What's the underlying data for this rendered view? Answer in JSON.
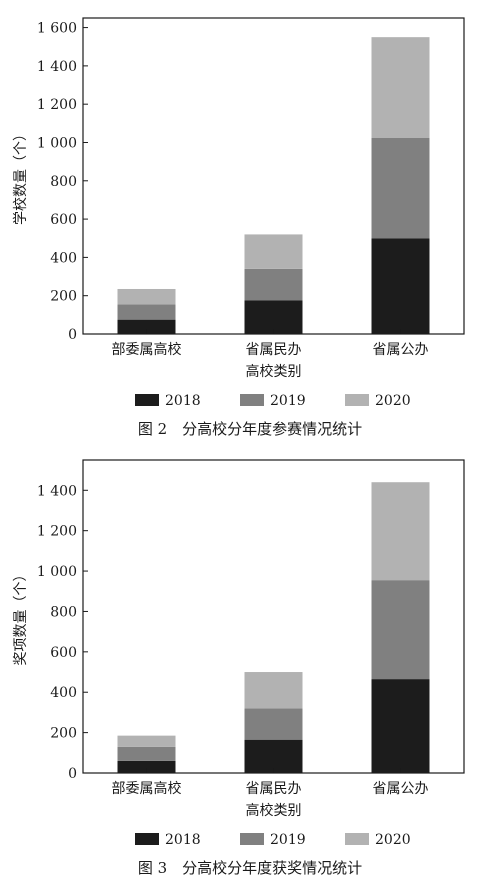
{
  "chart_data": [
    {
      "type": "bar",
      "stacked": true,
      "categories": [
        "部委属高校",
        "省属民办",
        "省属公办"
      ],
      "series": [
        {
          "name": "2018",
          "color": "#1c1c1c",
          "values": [
            75,
            175,
            500
          ]
        },
        {
          "name": "2019",
          "color": "#808080",
          "values": [
            80,
            165,
            525
          ]
        },
        {
          "name": "2020",
          "color": "#b2b2b2",
          "values": [
            80,
            180,
            525
          ]
        }
      ],
      "xlabel": "高校类别",
      "ylabel": "学校数量（个）",
      "ylim": [
        0,
        1650
      ],
      "yticks": [
        0,
        200,
        400,
        600,
        800,
        1000,
        1200,
        1400,
        1600
      ],
      "ytick_labels": [
        "0",
        "200",
        "400",
        "600",
        "800",
        "1 000",
        "1 200",
        "1 400",
        "1 600"
      ],
      "grid": false,
      "legend": "bottom",
      "caption": "图 2　分高校分年度参赛情况统计"
    },
    {
      "type": "bar",
      "stacked": true,
      "categories": [
        "部委属高校",
        "省属民办",
        "省属公办"
      ],
      "series": [
        {
          "name": "2018",
          "color": "#1c1c1c",
          "values": [
            60,
            165,
            465
          ]
        },
        {
          "name": "2019",
          "color": "#808080",
          "values": [
            70,
            155,
            490
          ]
        },
        {
          "name": "2020",
          "color": "#b2b2b2",
          "values": [
            55,
            180,
            485
          ]
        }
      ],
      "xlabel": "高校类别",
      "ylabel": "奖项数量（个）",
      "ylim": [
        0,
        1550
      ],
      "yticks": [
        0,
        200,
        400,
        600,
        800,
        1000,
        1200,
        1400
      ],
      "ytick_labels": [
        "0",
        "200",
        "400",
        "600",
        "800",
        "1 000",
        "1 200",
        "1 400"
      ],
      "grid": false,
      "legend": "bottom",
      "caption": "图 3　分高校分年度获奖情况统计"
    }
  ]
}
